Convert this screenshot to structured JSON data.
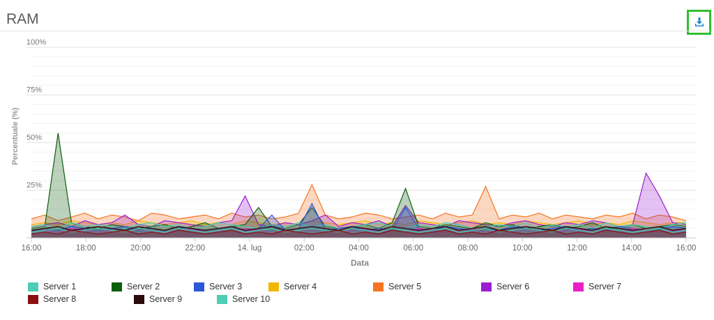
{
  "header": {
    "title": "RAM",
    "download_icon": "download-icon"
  },
  "chart_data": {
    "type": "area",
    "xlabel": "Data",
    "ylabel": "Percentuale (%)",
    "ylim": [
      0,
      100
    ],
    "yticks": [
      "100%",
      "75%",
      "50%",
      "25%"
    ],
    "x_range": [
      "13 lug 16:00",
      "14 lug 16:00"
    ],
    "xticks": [
      "16:00",
      "18:00",
      "20:00",
      "22:00",
      "14. lug",
      "02:00",
      "04:00",
      "06:00",
      "08:00",
      "10:00",
      "12:00",
      "14:00",
      "16:00"
    ],
    "grid": true,
    "legend_position": "bottom",
    "series": [
      {
        "name": "Server 1",
        "color": "#4ecdb4",
        "values": [
          6,
          7,
          5,
          8,
          6,
          7,
          6,
          5,
          7,
          8,
          6,
          7,
          5,
          6,
          8,
          7,
          6,
          5,
          7,
          6,
          8,
          6,
          7,
          5,
          6,
          7,
          8,
          6,
          5,
          7,
          6,
          8,
          7,
          5,
          6,
          7,
          6,
          8,
          5,
          7,
          6,
          7,
          5,
          8,
          6,
          7,
          6,
          5,
          7,
          8
        ]
      },
      {
        "name": "Server 2",
        "color": "#0d5e0d",
        "values": [
          5,
          6,
          55,
          8,
          6,
          5,
          7,
          6,
          5,
          6,
          7,
          5,
          6,
          8,
          5,
          6,
          7,
          16,
          6,
          5,
          7,
          16,
          6,
          5,
          6,
          7,
          5,
          8,
          26,
          6,
          5,
          7,
          6,
          5,
          8,
          6,
          7,
          5,
          6,
          7,
          5,
          6,
          8,
          5,
          6,
          7,
          5,
          6,
          7,
          6
        ]
      },
      {
        "name": "Server 3",
        "color": "#2b57d9",
        "values": [
          4,
          5,
          4,
          6,
          5,
          4,
          5,
          6,
          4,
          5,
          4,
          6,
          5,
          4,
          5,
          6,
          4,
          5,
          12,
          4,
          5,
          18,
          4,
          5,
          6,
          4,
          5,
          4,
          16,
          5,
          4,
          6,
          5,
          4,
          5,
          4,
          6,
          5,
          4,
          5,
          6,
          4,
          5,
          4,
          6,
          5,
          4,
          5,
          6,
          5
        ]
      },
      {
        "name": "Server 4",
        "color": "#f2b705",
        "values": [
          7,
          8,
          7,
          9,
          8,
          7,
          8,
          7,
          9,
          8,
          7,
          8,
          9,
          7,
          8,
          7,
          9,
          8,
          7,
          8,
          7,
          9,
          8,
          7,
          8,
          9,
          7,
          8,
          7,
          9,
          8,
          7,
          8,
          9,
          7,
          8,
          7,
          9,
          8,
          7,
          8,
          9,
          7,
          8,
          7,
          9,
          8,
          7,
          8,
          8
        ]
      },
      {
        "name": "Server 5",
        "color": "#f57423",
        "values": [
          10,
          12,
          9,
          11,
          13,
          10,
          12,
          11,
          9,
          13,
          12,
          10,
          11,
          12,
          10,
          13,
          11,
          12,
          10,
          11,
          13,
          28,
          12,
          10,
          11,
          13,
          12,
          10,
          11,
          12,
          10,
          13,
          11,
          12,
          27,
          10,
          12,
          11,
          13,
          10,
          12,
          11,
          10,
          12,
          11,
          13,
          10,
          12,
          11,
          9
        ]
      },
      {
        "name": "Server 6",
        "color": "#9b1fd0",
        "values": [
          6,
          7,
          8,
          6,
          9,
          7,
          8,
          12,
          7,
          6,
          9,
          8,
          7,
          6,
          8,
          9,
          22,
          7,
          6,
          8,
          7,
          9,
          12,
          6,
          8,
          7,
          9,
          6,
          17,
          8,
          7,
          6,
          9,
          8,
          7,
          6,
          8,
          9,
          7,
          6,
          8,
          7,
          9,
          8,
          6,
          7,
          34,
          22,
          8,
          7
        ]
      },
      {
        "name": "Server 7",
        "color": "#e91fc8",
        "values": [
          3,
          4,
          3,
          5,
          4,
          3,
          4,
          3,
          5,
          4,
          3,
          4,
          5,
          3,
          4,
          3,
          5,
          4,
          3,
          4,
          3,
          5,
          4,
          3,
          4,
          5,
          3,
          4,
          3,
          5,
          4,
          3,
          4,
          5,
          3,
          4,
          3,
          5,
          4,
          3,
          4,
          5,
          3,
          4,
          3,
          5,
          4,
          3,
          4,
          4
        ]
      },
      {
        "name": "Server 8",
        "color": "#8b1010",
        "values": [
          2,
          3,
          2,
          4,
          3,
          2,
          3,
          4,
          2,
          3,
          2,
          4,
          3,
          2,
          3,
          4,
          2,
          3,
          2,
          4,
          3,
          2,
          3,
          4,
          2,
          3,
          2,
          4,
          3,
          2,
          3,
          4,
          2,
          3,
          2,
          4,
          3,
          2,
          3,
          4,
          2,
          3,
          2,
          4,
          3,
          2,
          3,
          4,
          2,
          3
        ]
      },
      {
        "name": "Server 9",
        "color": "#2a0a0a",
        "values": [
          4,
          5,
          6,
          4,
          5,
          6,
          5,
          4,
          6,
          5,
          4,
          6,
          5,
          4,
          5,
          6,
          4,
          5,
          6,
          4,
          5,
          6,
          5,
          4,
          6,
          5,
          4,
          6,
          5,
          4,
          5,
          6,
          4,
          5,
          6,
          4,
          5,
          6,
          5,
          4,
          6,
          5,
          4,
          6,
          5,
          4,
          5,
          6,
          4,
          5
        ]
      },
      {
        "name": "Server 10",
        "color": "#4ecdb4",
        "values": [
          3,
          4,
          5,
          3,
          4,
          5,
          4,
          3,
          5,
          4,
          3,
          5,
          4,
          3,
          4,
          5,
          3,
          4,
          5,
          3,
          4,
          5,
          4,
          3,
          5,
          4,
          3,
          5,
          4,
          3,
          4,
          5,
          3,
          4,
          5,
          3,
          4,
          5,
          4,
          3,
          5,
          4,
          3,
          5,
          4,
          3,
          4,
          5,
          3,
          4
        ]
      }
    ]
  }
}
